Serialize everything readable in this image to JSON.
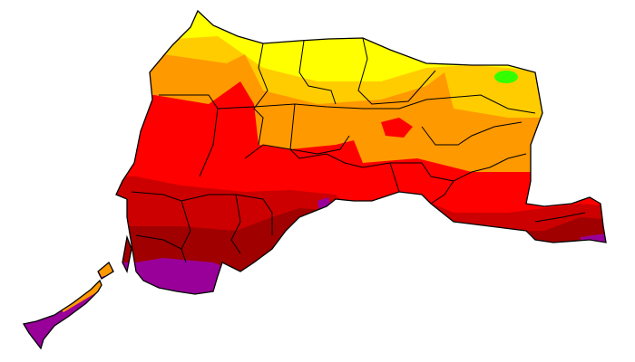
{
  "map": {
    "colors": {
      "yellow": "#ffff00",
      "gold": "#ffcc00",
      "orange": "#ff9900",
      "red": "#ff0000",
      "dark_red": "#cc0000",
      "darker_red": "#a00000",
      "purple": "#990099",
      "green": "#33ff00",
      "border": "#000000"
    }
  }
}
